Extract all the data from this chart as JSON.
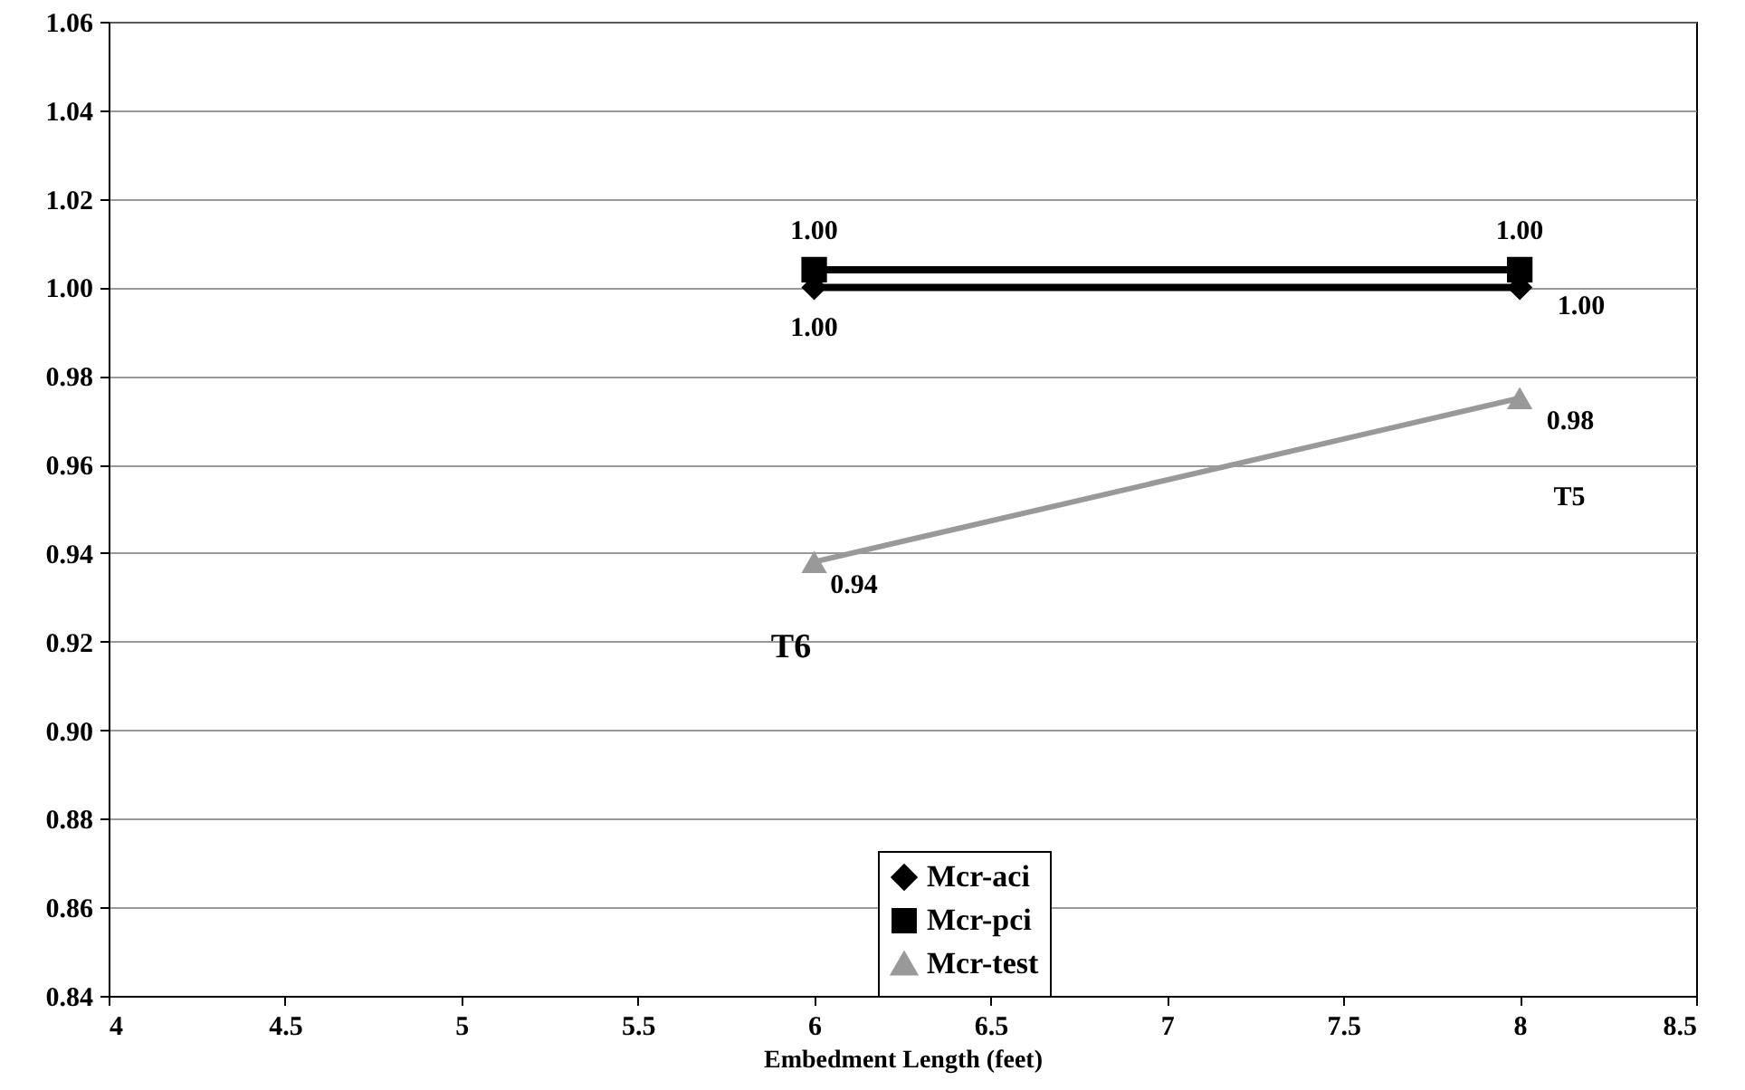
{
  "chart_data": {
    "type": "line",
    "xlabel": "Embedment Length (feet)",
    "x": [
      6,
      8
    ],
    "series": [
      {
        "name": "Mcr-aci",
        "color": "#000000",
        "marker": "diamond",
        "values": [
          1.0,
          1.0
        ],
        "value_labels": [
          "1.00",
          "1.00"
        ]
      },
      {
        "name": "Mcr-pci",
        "color": "#000000",
        "marker": "square",
        "values": [
          1.004,
          1.004
        ],
        "value_labels": [
          "1.00",
          "1.00"
        ]
      },
      {
        "name": "Mcr-test",
        "color": "#999999",
        "marker": "triangle",
        "values": [
          0.938,
          0.975
        ],
        "value_labels": [
          "0.94",
          "0.98"
        ]
      }
    ],
    "annotations": [
      "T6",
      "T5"
    ],
    "xlim": [
      4,
      8.5
    ],
    "xticks": [
      4,
      4.5,
      5,
      5.5,
      6,
      6.5,
      7,
      7.5,
      8,
      8.5
    ],
    "ylim": [
      0.84,
      1.06
    ],
    "yticks": [
      0.84,
      0.86,
      0.88,
      {
        "value": 0.9,
        "label": "0.90"
      },
      0.92,
      0.94,
      0.96,
      0.98,
      {
        "value": 1.0,
        "label": "1.00"
      },
      1.02,
      1.04,
      1.06
    ],
    "grid": "y",
    "legend": "bottom"
  }
}
